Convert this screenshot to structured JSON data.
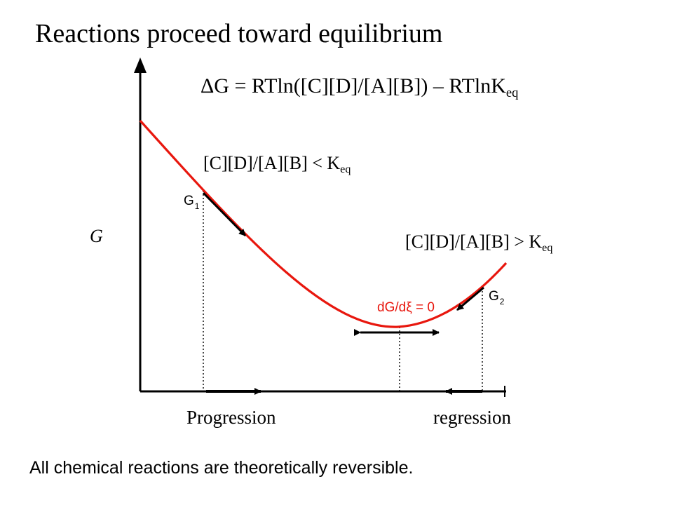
{
  "title": "Reactions proceed toward equilibrium",
  "equation": {
    "main": "ΔG = RTln([C][D]/[A][B])  – RTlnK",
    "sub": "eq"
  },
  "label_lt": {
    "main": "[C][D]/[A][B] < K",
    "sub": "eq"
  },
  "label_gt": {
    "main": "[C][D]/[A][B] > K",
    "sub": "eq"
  },
  "axis_label_y": "G",
  "point_g1": {
    "main": "G",
    "sub": "1"
  },
  "point_g2": {
    "main": "G",
    "sub": "2"
  },
  "equilibrium_label": "dG/dξ = 0",
  "label_progression": "Progression",
  "label_regression": "regression",
  "footnote": "All chemical reactions are theoretically reversible.",
  "colors": {
    "curve": "#e8170e",
    "equilibrium_text": "#e8170e",
    "ink": "#000000"
  }
}
